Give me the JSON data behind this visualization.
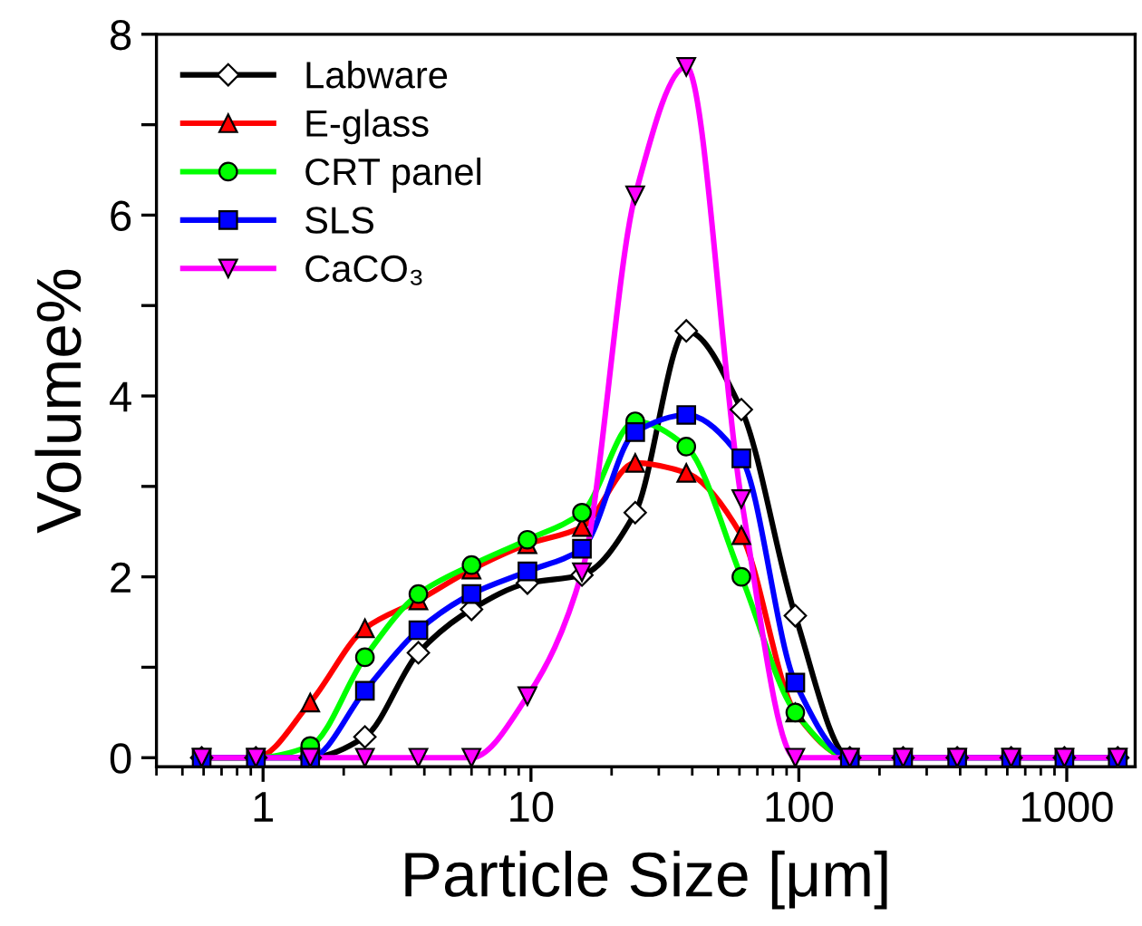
{
  "chart_data": {
    "type": "line",
    "xlabel": "Particle Size [μm]",
    "ylabel": "Volume%",
    "x": [
      0.59,
      0.94,
      1.5,
      2.4,
      3.8,
      6.0,
      9.7,
      15.5,
      24.5,
      38,
      61,
      97,
      155,
      245,
      390,
      620,
      980,
      1550
    ],
    "series": [
      {
        "name": "Labware",
        "color": "#000000",
        "marker": "diamond",
        "values": [
          0,
          0,
          0,
          0.23,
          1.16,
          1.64,
          1.93,
          2.02,
          2.71,
          4.72,
          3.85,
          1.57,
          0,
          0,
          0,
          0,
          0,
          0
        ]
      },
      {
        "name": "E-glass",
        "color": "#ff0000",
        "marker": "triangle",
        "values": [
          0,
          0,
          0.61,
          1.43,
          1.74,
          2.08,
          2.36,
          2.55,
          3.26,
          3.15,
          2.46,
          0.5,
          0,
          0,
          null,
          null,
          null,
          null
        ]
      },
      {
        "name": "CRT panel",
        "color": "#00ff00",
        "marker": "circle",
        "values": [
          0,
          0,
          0.13,
          1.11,
          1.81,
          2.13,
          2.41,
          2.71,
          3.72,
          3.44,
          2.0,
          0.5,
          0,
          0,
          null,
          null,
          null,
          null
        ]
      },
      {
        "name": "SLS",
        "color": "#0000ff",
        "marker": "square",
        "values": [
          0,
          0,
          0,
          0.74,
          1.41,
          1.81,
          2.06,
          2.31,
          3.6,
          3.79,
          3.31,
          0.83,
          0,
          0,
          0,
          0,
          0,
          0
        ]
      },
      {
        "name": "CaCO₃",
        "color": "#ff00ff",
        "marker": "triangle_down",
        "values": [
          0,
          0,
          0,
          0,
          0,
          0,
          0.68,
          2.05,
          6.22,
          7.64,
          2.86,
          0,
          0,
          0,
          0,
          0,
          0,
          0
        ]
      }
    ],
    "log": "x",
    "xlim": [
      0.4,
      1800
    ],
    "xticks": [
      1,
      10,
      100,
      1000
    ],
    "ylim": [
      -0.1,
      8
    ],
    "yticks": [
      0,
      {
        "value": 1,
        "label": null
      },
      2,
      {
        "value": 3,
        "label": null
      },
      4,
      {
        "value": 5,
        "label": null
      },
      6,
      {
        "value": 7,
        "label": null
      },
      8
    ],
    "grid": false,
    "legend": "top left",
    "line_style": "solid"
  }
}
